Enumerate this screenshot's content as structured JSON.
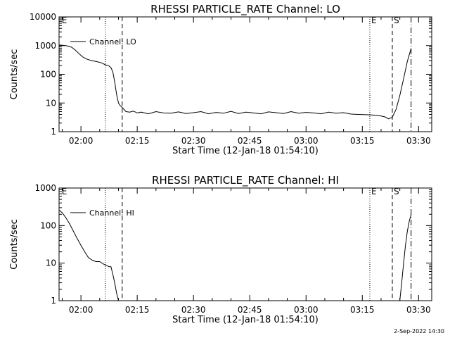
{
  "footer": {
    "timestamp": "2-Sep-2022 14:30"
  },
  "chart_data": [
    {
      "type": "line",
      "title": "RHESSI PARTICLE_RATE Channel: LO",
      "xlabel": "Start Time (12-Jan-18 01:54:10)",
      "ylabel": "Counts/sec",
      "yscale": "log",
      "ylim": [
        1,
        10000
      ],
      "xlim": [
        "01:54:10",
        "03:33:30"
      ],
      "xticks": [
        "02:00",
        "02:15",
        "02:30",
        "02:45",
        "03:00",
        "03:15",
        "03:30"
      ],
      "yticks": [
        "1",
        "10",
        "100",
        "1000",
        "10000"
      ],
      "legend": {
        "placement": "top-left",
        "label": "Channel: LO"
      },
      "markers": [
        {
          "label": "E",
          "time": "01:54:30",
          "style": "none"
        },
        {
          "label": "",
          "time": "02:06:30",
          "style": "dotted"
        },
        {
          "label": "",
          "time": "02:11:00",
          "style": "dashed"
        },
        {
          "label": "E",
          "time": "03:17:00",
          "style": "dotted"
        },
        {
          "label": "S",
          "time": "03:23:00",
          "style": "dashed"
        },
        {
          "label": "",
          "time": "03:28:00",
          "style": "dashdot"
        }
      ],
      "series": [
        {
          "x": [
            "01:54:10",
            "01:56:00",
            "01:57:30",
            "01:58:30",
            "01:59:30",
            "02:00:30",
            "02:01:30",
            "02:02:30",
            "02:03:30",
            "02:04:30",
            "02:05:30",
            "02:06:30",
            "02:07:30",
            "02:08:00",
            "02:08:30",
            "02:09:00",
            "02:09:30",
            "02:10:00",
            "02:10:30",
            "02:11:00",
            "02:12:00",
            "02:13:00",
            "02:14:00",
            "02:15:00",
            "02:16:00",
            "02:18:00",
            "02:20:00",
            "02:22:00",
            "02:24:00",
            "02:26:00",
            "02:28:00",
            "02:30:00",
            "02:32:00",
            "02:34:00",
            "02:36:00",
            "02:38:00",
            "02:40:00",
            "02:42:00",
            "02:44:00",
            "02:46:00",
            "02:48:00",
            "02:50:00",
            "02:52:00",
            "02:54:00",
            "02:56:00",
            "02:58:00",
            "03:00:00",
            "03:02:00",
            "03:04:00",
            "03:06:00",
            "03:08:00",
            "03:10:00",
            "03:12:00",
            "03:14:00",
            "03:16:00",
            "03:18:00",
            "03:20:00",
            "03:21:00",
            "03:22:00",
            "03:23:00",
            "03:24:00",
            "03:25:00",
            "03:26:00",
            "03:27:00",
            "03:28:00"
          ],
          "y": [
            1050,
            1000,
            880,
            700,
            520,
            400,
            340,
            310,
            290,
            270,
            250,
            215,
            195,
            170,
            120,
            55,
            20,
            10,
            8,
            7,
            5,
            4.8,
            5.2,
            4.5,
            4.8,
            4.2,
            5,
            4.5,
            4.4,
            4.9,
            4.3,
            4.6,
            5,
            4.2,
            4.7,
            4.4,
            5.1,
            4.3,
            4.8,
            4.5,
            4.2,
            4.9,
            4.6,
            4.3,
            5,
            4.4,
            4.7,
            4.5,
            4.2,
            4.8,
            4.4,
            4.6,
            4.1,
            4,
            3.9,
            3.8,
            3.5,
            3.3,
            2.8,
            3.2,
            6,
            18,
            70,
            280,
            800
          ]
        }
      ]
    },
    {
      "type": "line",
      "title": "RHESSI PARTICLE_RATE Channel: HI",
      "xlabel": "Start Time (12-Jan-18 01:54:10)",
      "ylabel": "Counts/sec",
      "yscale": "log",
      "ylim": [
        1,
        1000
      ],
      "xlim": [
        "01:54:10",
        "03:33:30"
      ],
      "xticks": [
        "02:00",
        "02:15",
        "02:30",
        "02:45",
        "03:00",
        "03:15",
        "03:30"
      ],
      "yticks": [
        "1",
        "10",
        "100",
        "1000"
      ],
      "legend": {
        "placement": "top-left",
        "label": "Channel: HI"
      },
      "markers": [
        {
          "label": "E",
          "time": "01:54:30",
          "style": "none"
        },
        {
          "label": "",
          "time": "02:06:30",
          "style": "dotted"
        },
        {
          "label": "",
          "time": "02:11:00",
          "style": "dashed"
        },
        {
          "label": "E",
          "time": "03:17:00",
          "style": "dotted"
        },
        {
          "label": "S",
          "time": "03:23:00",
          "style": "dashed"
        },
        {
          "label": "",
          "time": "03:28:00",
          "style": "dashdot"
        }
      ],
      "series": [
        {
          "segments": [
            {
              "x": [
                "01:54:10",
                "01:55:00",
                "01:56:00",
                "01:57:00",
                "01:58:00",
                "01:59:00",
                "02:00:00",
                "02:01:00",
                "02:02:00",
                "02:03:00",
                "02:04:00",
                "02:05:00",
                "02:06:00",
                "02:07:00",
                "02:07:30",
                "02:08:00",
                "02:08:30",
                "02:09:00",
                "02:09:30",
                "02:10:00"
              ],
              "y": [
                260,
                220,
                160,
                110,
                70,
                45,
                30,
                20,
                14,
                12,
                11,
                11,
                9.5,
                8.5,
                8,
                8,
                5,
                3,
                1.6,
                1
              ]
            },
            {
              "x": [
                "03:25:00",
                "03:25:30",
                "03:26:00",
                "03:26:30",
                "03:27:00",
                "03:27:30",
                "03:28:00"
              ],
              "y": [
                1,
                3,
                10,
                30,
                70,
                130,
                200
              ]
            }
          ]
        }
      ]
    }
  ]
}
